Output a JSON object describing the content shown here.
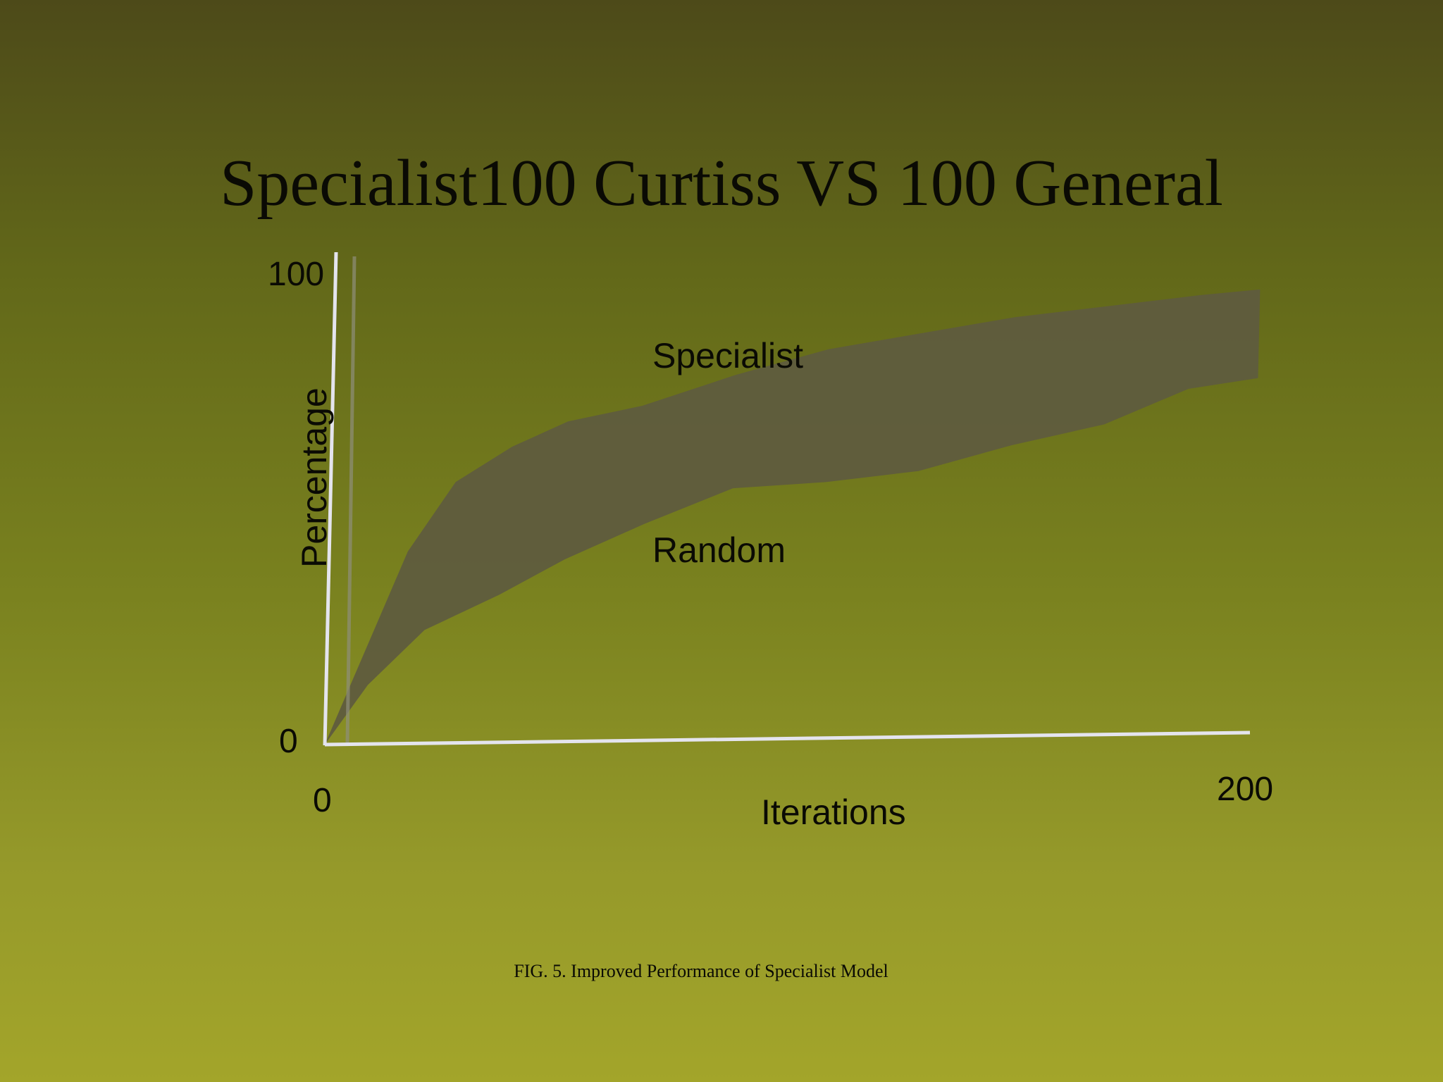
{
  "slide": {
    "title": "Specialist100 Curtiss VS 100 General",
    "caption": "FIG. 5. Improved Performance of Specialist Model"
  },
  "colors": {
    "band_fill": "#5f5c3e",
    "axis_line": "#e4e4ee",
    "text": "#0a0a04"
  },
  "chart_data": {
    "type": "area",
    "title": "Specialist100 Curtiss VS 100 General",
    "xlabel": "Iterations",
    "ylabel": "Percentage",
    "xlim": [
      0,
      200
    ],
    "ylim": [
      0,
      100
    ],
    "x_tick_labels": [
      "0",
      "200"
    ],
    "y_tick_labels": [
      "0",
      "100"
    ],
    "grid": false,
    "legend": "none",
    "series": [
      {
        "name": "Specialist",
        "x": [
          0,
          17,
          27,
          39,
          51,
          67,
          87,
          107,
          127,
          147,
          167,
          187,
          200
        ],
        "y": [
          0,
          39,
          53,
          60,
          65,
          68,
          74,
          79,
          82,
          85,
          87,
          89,
          90
        ]
      },
      {
        "name": "Random",
        "x": [
          0,
          9,
          21,
          37,
          51,
          68,
          87,
          107,
          127,
          147,
          167,
          185,
          200
        ],
        "y": [
          0,
          12,
          23,
          30,
          37,
          44,
          51,
          52,
          54,
          59,
          63,
          70,
          72
        ]
      }
    ]
  }
}
